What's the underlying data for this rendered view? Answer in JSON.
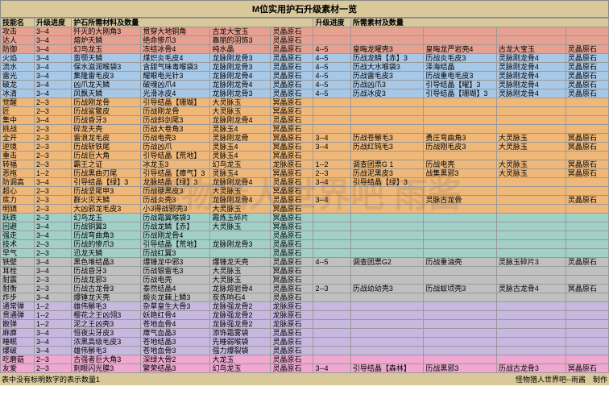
{
  "title": "M位实用护石升级素材一览",
  "headers": {
    "skill": "技能名",
    "progress": "升级进度",
    "materials_left": "护石所需材料及数量",
    "progress2": "升级进度",
    "materials_right": "所需素材及数量"
  },
  "colors": {
    "header": "#d8c89a",
    "red": "#e8a090",
    "blue": "#a8c8e8",
    "orange": "#f0b878",
    "teal": "#a0d0c8",
    "gray": "#c0c0c0",
    "purple": "#c8b8e0",
    "pink": "#f0a8d0"
  },
  "watermark": "怪物猎人世界吧 雨酱",
  "footer": {
    "left": "表中没有标明数字的表示数量1",
    "right": "怪物猎人世界吧--雨酱　制作"
  },
  "rows": [
    {
      "c": "red",
      "skill": "攻击",
      "p": "3--4",
      "m": [
        "歼灭的大刚角3",
        "贯穿大地铜角",
        "古龙大宝玉",
        "灵晶原石"
      ]
    },
    {
      "c": "red",
      "skill": "达人",
      "p": "3--4",
      "m": [
        "熔炉天鳞",
        "绝命惨爪3",
        "靠丽的羽饰3",
        "灵晶原石"
      ]
    },
    {
      "c": "red",
      "skill": "防御",
      "p": "3--4",
      "m": [
        "幻鸟龙玉",
        "冻结冰骨4",
        "纯水晶",
        "灵晶原石"
      ],
      "p2": "4--5",
      "r": [
        "皇晦龙曜壳3",
        "皇晦龙严岩壳4",
        "古龙大宝玉",
        "灵晶原石"
      ]
    },
    {
      "c": "blue",
      "skill": "火焰",
      "p": "3--4",
      "m": [
        "蛮颚天鳞",
        "煤炽炎毛皮4",
        "龙脉刚龙骨3",
        "灵晶原石"
      ],
      "p2": "4--5",
      "r": [
        "历战龙鳞【赤】3",
        "历战炎毛皮3",
        "灵脉刚龙骨4",
        "灵晶原石"
      ]
    },
    {
      "c": "blue",
      "skill": "流水",
      "p": "3--4",
      "m": [
        "保水滋润喉袋3",
        "含甜气味毒喉袋3",
        "龙脉刚龙骨3",
        "灵晶原石"
      ],
      "p2": "4--5",
      "r": [
        "历战大水喉袋3",
        "泽海结晶",
        "灵脉刚龙骨4",
        "灵晶原石"
      ]
    },
    {
      "c": "blue",
      "skill": "雷光",
      "p": "3--4",
      "m": [
        "集隆雷毛皮3",
        "耀眼电光针3",
        "龙脉刚龙骨4",
        "灵晶原石"
      ],
      "p2": "4--5",
      "r": [
        "历战雷毛皮3",
        "历战重电毛皮3",
        "灵脉刚龙骨4",
        "灵晶原石"
      ]
    },
    {
      "c": "blue",
      "skill": "破龙",
      "p": "3--4",
      "m": [
        "凶爪龙天鳞",
        "破魂凶爪4",
        "龙脉刚龙骨4",
        "灵晶原石"
      ],
      "p2": "4--5",
      "r": [
        "历战凶爪3",
        "引导结晶【曜】3",
        "灵脉刚龙骨4",
        "灵晶原石"
      ]
    },
    {
      "c": "blue",
      "skill": "冰清",
      "p": "3--4",
      "m": [
        "凤飘天鳞",
        "光滑冰皮4",
        "龙脉刚龙骨3",
        "灵晶原石"
      ],
      "p2": "4--5",
      "r": [
        "历战冰皮3",
        "引导结晶【珊瑚】3",
        "灵脉刚龙骨4",
        "灵晶原石"
      ]
    },
    {
      "c": "orange",
      "skill": "觉醒",
      "p": "2--3",
      "m": [
        "历战刚龙骨",
        "引导结晶【珊瑚】",
        "大灵脉玉",
        "冥晶原石"
      ]
    },
    {
      "c": "orange",
      "skill": "匠",
      "p": "2--3",
      "m": [
        "历战鲨鳘皮",
        "历战刚龙骨",
        "大灵脉玉",
        "冥晶原石"
      ]
    },
    {
      "c": "orange",
      "skill": "集中",
      "p": "3--4",
      "m": [
        "历战昏牙3",
        "历战斜剑尾3",
        "龙脉刚龙骨4",
        "灵晶原石"
      ]
    },
    {
      "c": "orange",
      "skill": "挑战",
      "p": "2--3",
      "m": [
        "碎龙天壳",
        "历战大卷角3",
        "灵脉玉4",
        "冥晶原石"
      ]
    },
    {
      "c": "orange",
      "skill": "全开",
      "p": "2--3",
      "m": [
        "雷浪龙毛皮",
        "历战电壳3",
        "灵脉刚龙骨",
        "冥晶原石"
      ],
      "p2": "3--4",
      "r": [
        "历战苍鬃毛3",
        "勇庄弯曲角3",
        "大灵脉玉",
        "冥晶原石"
      ]
    },
    {
      "c": "orange",
      "skill": "逆境",
      "p": "2--3",
      "m": [
        "历战斩铁尾",
        "历战凶爪",
        "灵脉玉4",
        "冥晶原石"
      ],
      "p2": "3--4",
      "r": [
        "历战红钝毛3",
        "历战刚毛皮3",
        "大灵脉玉",
        "冥晶原石"
      ]
    },
    {
      "c": "orange",
      "skill": "重击",
      "p": "2--3",
      "m": [
        "历战巨大角",
        "引导结晶【荒地】",
        "灵脉玉4",
        "冥晶原石"
      ]
    },
    {
      "c": "orange",
      "skill": "转福",
      "p": "2--3",
      "m": [
        "霸王之证",
        "冰龙玉3",
        "幻鸟龙玉",
        "龙脉原石"
      ],
      "p2": "1--2",
      "r": [
        "调查团票G 1",
        "历战电壳",
        "大灵脉玉",
        "冥晶原石"
      ]
    },
    {
      "c": "orange",
      "skill": "恶拖",
      "p": "1--2",
      "m": [
        "历战黑曲刃尾",
        "引导结晶【瘴气】3",
        "灵脉玉4",
        "冥晶原石"
      ],
      "p2": "2--3",
      "r": [
        "历战泥黑皮3",
        "战集黑邪3",
        "大灵脉玉",
        "冥晶原石"
      ]
    },
    {
      "c": "orange",
      "skill": "防调高",
      "p": "3--4",
      "m": [
        "引导结晶【绿】3",
        "龙脉结晶【绿】3",
        "龙脉刚龙骨4",
        "灵晶原石"
      ],
      "p2": "3--4",
      "r": [
        "引导结晶【绿】3",
        "",
        "",
        ""
      ]
    },
    {
      "c": "orange",
      "skill": "超心",
      "p": "2--3",
      "m": [
        "历战坚尾甲3",
        "历战硬黑皮3",
        "大灵脉玉",
        "冥晶原石"
      ]
    },
    {
      "c": "orange",
      "skill": "底力",
      "p": "2--3",
      "m": [
        "群火灾天鳞",
        "历战炎壳3",
        "龙脉刚龙骨4",
        "灵晶原石"
      ],
      "p2": "3--4",
      "r": [
        "",
        "灵脉古龙骨",
        "",
        "灵晶原石"
      ]
    },
    {
      "c": "orange",
      "skill": "明镜",
      "p": "2--3",
      "m": [
        "大凶邪龙毛皮3",
        "小3得战邪壳3",
        "大灵脉玉",
        "冥晶原石"
      ]
    },
    {
      "c": "teal",
      "skill": "跃跌",
      "p": "2--3",
      "m": [
        "幻鸟龙玉",
        "历战霜翼喉袋3",
        "霞炼玉碎片",
        "冥晶原石"
      ]
    },
    {
      "c": "teal",
      "skill": "回避",
      "p": "3--4",
      "m": [
        "历战铜翼3",
        "历战龙鳞【赤】",
        "大灵脉玉",
        "冥晶原石"
      ]
    },
    {
      "c": "teal",
      "skill": "强走",
      "p": "3--4",
      "m": [
        "历战弯曲角3",
        "历战刚龙骨4",
        "",
        "灵晶原石"
      ]
    },
    {
      "c": "teal",
      "skill": "技术",
      "p": "2--3",
      "m": [
        "历战的惨爪3",
        "引导结晶【荒地】",
        "龙脉刚龙骨3",
        "灵晶原石"
      ]
    },
    {
      "c": "teal",
      "skill": "早气",
      "p": "2--3",
      "m": [
        "迅龙天鳞",
        "历战红翼3",
        "",
        "灵晶原石"
      ]
    },
    {
      "c": "gray",
      "skill": "铁壁",
      "p": "3--4",
      "m": [
        "黑色堆结晶3",
        "爆锤龙中邪3",
        "爆锤龙天壳",
        "灵晶原石"
      ],
      "p2": "4--5",
      "r": [
        "调查团票G2",
        "历战重油壳",
        "灵脉玉碎片3",
        "灵晶原石"
      ]
    },
    {
      "c": "gray",
      "skill": "耳栓",
      "p": "3--4",
      "m": [
        "历战昏牙3",
        "历战银雷毛3",
        "大灵脉玉",
        "冥晶原石"
      ]
    },
    {
      "c": "gray",
      "skill": "耐震",
      "p": "2--3",
      "m": [
        "历战龙邪3",
        "历战电壳",
        "大灵脉玉",
        "冥晶原石"
      ]
    },
    {
      "c": "gray",
      "skill": "耐衡",
      "p": "2--3",
      "m": [
        "历战古龙骨3",
        "泰然结晶4",
        "龙脉熔岩骨4",
        "灵晶原石"
      ],
      "p2": "2--3",
      "r": [
        "历战幼幼壳3",
        "历战蚁顷壳3",
        "灵脉古龙骨4",
        "冥晶原石"
      ]
    },
    {
      "c": "gray",
      "skill": "炸步",
      "p": "3--4",
      "m": [
        "爆锤龙天壳",
        "煅炎龙棘上鳞3",
        "炭炼响石4",
        "灵晶原石"
      ]
    },
    {
      "c": "purple",
      "skill": "通常弹",
      "p": "1--2",
      "m": [
        "雄伟鬃毛3",
        "杂草皇生大骨3",
        "龙脉强龙骨2",
        "龙脉原石"
      ]
    },
    {
      "c": "purple",
      "skill": "贯通弹",
      "p": "1--2",
      "m": [
        "樱花之王凶翎3",
        "妖艳红骨4",
        "龙脉强龙骨2",
        "龙脉原石"
      ]
    },
    {
      "c": "purple",
      "skill": "散弹",
      "p": "1--2",
      "m": [
        "泥之王凶壳3",
        "苍地血骨4",
        "龙脉强龙骨2",
        "龙脉原石"
      ]
    },
    {
      "c": "purple",
      "skill": "麻痹",
      "p": "3--4",
      "m": [
        "恒夜尖牙皮3",
        "瘴气血晶3",
        "添饰霜雾袋",
        "灵晶原石"
      ]
    },
    {
      "c": "purple",
      "skill": "睡眠",
      "p": "3--4",
      "m": [
        "浓黑高级毛皮3",
        "苍地结晶3",
        "先睡弱喉袋",
        "灵晶原石"
      ]
    },
    {
      "c": "purple",
      "skill": "爆破",
      "p": "3--4",
      "m": [
        "雄伟鬃毛3",
        "苍地血骨3",
        "强力爆裂袋",
        "灵晶原石"
      ]
    },
    {
      "c": "pink",
      "skill": "吃蘑菇",
      "p": "2--3",
      "m": [
        "古强者巨大角3",
        "深绿大骨2",
        "大龙玉",
        "灵晶原石"
      ]
    },
    {
      "c": "pink",
      "skill": "友爱",
      "p": "2--3",
      "m": [
        "刺眼闪光膜3",
        "繁荣结晶3",
        "幻鸟龙玉",
        "灵晶原石"
      ],
      "p2": "3--4",
      "r": [
        "引导结晶【森林】",
        "历战黑邪3",
        "历战古龙骨3",
        "冥晶原石"
      ]
    }
  ]
}
